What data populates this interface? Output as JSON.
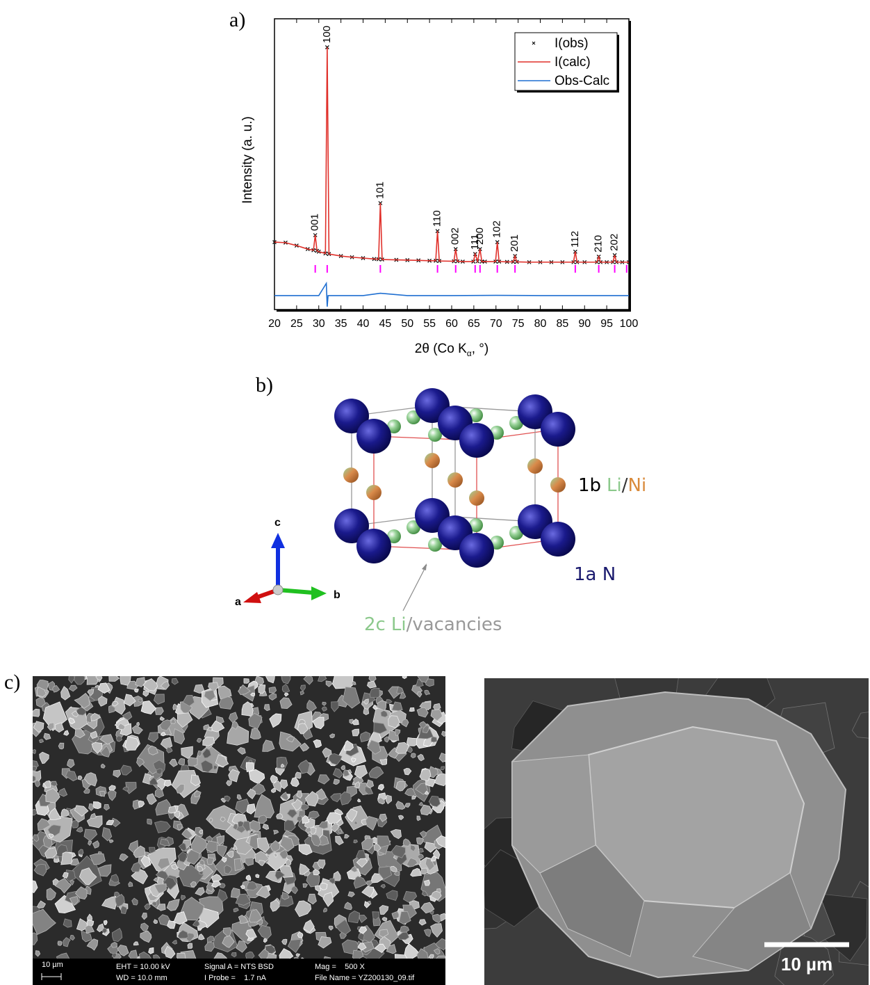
{
  "chart_data": {
    "type": "line",
    "panel_label": "a)",
    "y_label": "Intensity (a. u.)",
    "x_label": [
      "2θ (Co K",
      "α",
      ", °)"
    ],
    "xlim": [
      20,
      100
    ],
    "xticks": [
      20,
      25,
      30,
      35,
      40,
      45,
      50,
      55,
      60,
      65,
      70,
      75,
      80,
      85,
      90,
      95,
      100
    ],
    "ylim": [
      0,
      100
    ],
    "legend": "upper right",
    "series": [
      {
        "name": "I(obs)",
        "color": "#000000",
        "marker": "x",
        "x": [
          20,
          22.5,
          25,
          27.5,
          28.8,
          29.2,
          29.6,
          30,
          31.5,
          31.9,
          32.3,
          35,
          37.5,
          40,
          42.5,
          43.5,
          43.9,
          44.3,
          47.5,
          50,
          52.5,
          55,
          56.4,
          56.8,
          57.2,
          60.5,
          60.9,
          61.3,
          62.5,
          64.9,
          65.3,
          65.85,
          66.4,
          66.8,
          67.5,
          69.9,
          70.3,
          70.7,
          72.5,
          73.9,
          74.3,
          74.7,
          77.5,
          80,
          82.5,
          85,
          87.5,
          87.9,
          88.3,
          90,
          92.8,
          93.2,
          93.6,
          95,
          96.4,
          96.8,
          97.2,
          98.5,
          100
        ],
        "values": [
          23.2,
          23.0,
          22.0,
          20.8,
          20.4,
          25.6,
          20.2,
          19.9,
          19.3,
          90.2,
          19.1,
          18.4,
          18.0,
          17.7,
          17.4,
          17.3,
          36.6,
          17.2,
          17.1,
          17.0,
          16.9,
          16.8,
          16.8,
          27.0,
          16.7,
          16.6,
          20.8,
          16.6,
          16.5,
          16.5,
          19.1,
          16.6,
          20.8,
          16.5,
          16.5,
          16.5,
          23.2,
          16.5,
          16.4,
          16.4,
          18.4,
          16.4,
          16.3,
          16.3,
          16.3,
          16.3,
          16.3,
          19.9,
          16.3,
          16.3,
          16.3,
          18.2,
          16.3,
          16.3,
          16.3,
          18.7,
          16.3,
          16.3,
          16.3
        ]
      },
      {
        "name": "I(calc)",
        "color": "#e0302a",
        "x": [
          20,
          22.5,
          25,
          27.5,
          28.8,
          29.2,
          29.6,
          30,
          31.5,
          31.9,
          32.3,
          35,
          37.5,
          40,
          42.5,
          43.5,
          43.9,
          44.3,
          47.5,
          50,
          52.5,
          55,
          56.4,
          56.8,
          57.2,
          60.5,
          60.9,
          61.3,
          62.5,
          64.9,
          65.3,
          65.85,
          66.4,
          66.8,
          67.5,
          69.9,
          70.3,
          70.7,
          72.5,
          73.9,
          74.3,
          74.7,
          77.5,
          80,
          82.5,
          85,
          87.5,
          87.9,
          88.3,
          90,
          92.8,
          93.2,
          93.6,
          95,
          96.4,
          96.8,
          97.2,
          98.5,
          100
        ],
        "values": [
          23.2,
          23.0,
          22.0,
          20.8,
          20.4,
          25.6,
          20.2,
          19.9,
          19.3,
          90.2,
          19.1,
          18.4,
          18.0,
          17.7,
          17.4,
          17.3,
          36.6,
          17.2,
          17.1,
          17.0,
          16.9,
          16.8,
          16.8,
          27.0,
          16.7,
          16.6,
          20.8,
          16.6,
          16.5,
          16.5,
          19.1,
          16.6,
          20.8,
          16.5,
          16.5,
          16.5,
          23.2,
          16.5,
          16.4,
          16.4,
          18.4,
          16.4,
          16.3,
          16.3,
          16.3,
          16.3,
          16.3,
          19.9,
          16.3,
          16.3,
          16.3,
          18.2,
          16.3,
          16.3,
          16.3,
          18.7,
          16.3,
          16.3,
          16.3
        ]
      },
      {
        "name": "Obs-Calc",
        "color": "#1f6fd1",
        "x": [
          20,
          30,
          31.7,
          31.9,
          32.1,
          40,
          43.9,
          50,
          60,
          70,
          80,
          90,
          100
        ],
        "values": [
          4.8,
          4.8,
          9.0,
          1.0,
          4.8,
          4.8,
          5.6,
          4.8,
          4.8,
          4.9,
          4.8,
          4.8,
          4.8
        ]
      }
    ],
    "reflections": {
      "color": "#ff00ff",
      "x": [
        29.2,
        31.9,
        43.9,
        56.8,
        60.9,
        65.3,
        66.4,
        70.3,
        74.3,
        87.9,
        93.2,
        96.8,
        99.5
      ]
    },
    "peak_labels": [
      {
        "text": "001",
        "x": 29.2,
        "y": 25.6
      },
      {
        "text": "100",
        "x": 31.9,
        "y": 90.2
      },
      {
        "text": "101",
        "x": 43.9,
        "y": 36.6
      },
      {
        "text": "110",
        "x": 56.8,
        "y": 27.0
      },
      {
        "text": "002",
        "x": 60.9,
        "y": 20.8
      },
      {
        "text": "111",
        "x": 65.3,
        "y": 19.1
      },
      {
        "text": "200",
        "x": 66.4,
        "y": 20.8
      },
      {
        "text": "102",
        "x": 70.3,
        "y": 23.2
      },
      {
        "text": "201",
        "x": 74.3,
        "y": 18.4
      },
      {
        "text": "112",
        "x": 87.9,
        "y": 19.9
      },
      {
        "text": "210",
        "x": 93.2,
        "y": 18.2
      },
      {
        "text": "202",
        "x": 96.8,
        "y": 18.7
      }
    ]
  },
  "structure": {
    "panel_label": "b)",
    "site_1b": {
      "wyckoff": "1b",
      "species": [
        "Li",
        "/",
        "Ni"
      ]
    },
    "site_1a": "1a N",
    "site_2c": {
      "wyckoff": "2c",
      "species": [
        "Li",
        "/vacancies"
      ]
    },
    "axes": [
      "a",
      "b",
      "c"
    ]
  },
  "sem": {
    "panel_label": "c)",
    "left": {
      "scale": "10 µm",
      "info": [
        "EHT = 10.00 kV",
        "WD = 10.0 mm",
        "Signal A = NTS BSD",
        "I Probe =    1.7 nA",
        "Mag =    500 X",
        "File Name = YZ200130_09.tif"
      ]
    },
    "right": {
      "scale": "10 µm"
    }
  }
}
